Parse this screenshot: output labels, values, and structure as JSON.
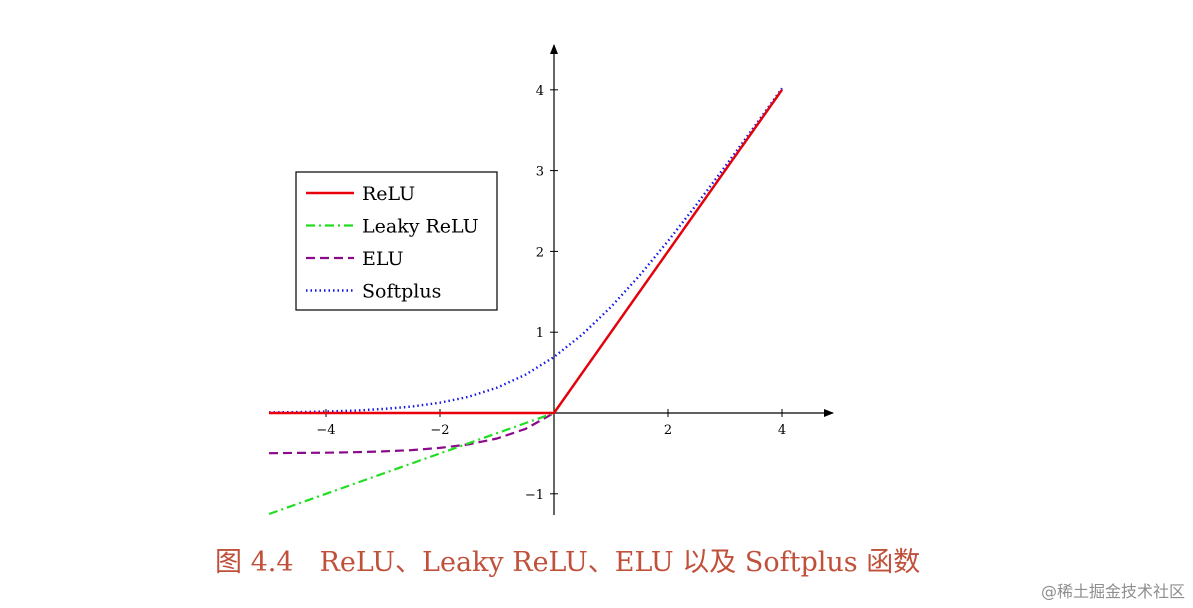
{
  "chart_data": {
    "type": "line",
    "title": "",
    "xlabel": "",
    "ylabel": "",
    "xlim": [
      -5,
      5
    ],
    "ylim": [
      -1.25,
      4.5
    ],
    "x_ticks": [
      -4,
      -2,
      2,
      4
    ],
    "x_tick_labels": [
      "−4",
      "−2",
      "2",
      "4"
    ],
    "y_ticks": [
      -1,
      1,
      2,
      3,
      4
    ],
    "y_tick_labels": [
      "−1",
      "1",
      "2",
      "3",
      "4"
    ],
    "grid": false,
    "legend_position": "upper-left",
    "x": [
      -5,
      -4.5,
      -4,
      -3.5,
      -3,
      -2.5,
      -2,
      -1.5,
      -1,
      -0.5,
      0,
      0.5,
      1,
      1.5,
      2,
      2.5,
      3,
      3.5,
      4
    ],
    "series": [
      {
        "name": "ReLU",
        "color": "#e8000b",
        "style": "solid",
        "values": [
          0,
          0,
          0,
          0,
          0,
          0,
          0,
          0,
          0,
          0,
          0,
          0.5,
          1,
          1.5,
          2,
          2.5,
          3,
          3.5,
          4
        ]
      },
      {
        "name": "Leaky ReLU",
        "color": "#22dd22",
        "style": "dashdot",
        "values": [
          -1.25,
          -1.125,
          -1.0,
          -0.875,
          -0.75,
          -0.625,
          -0.5,
          -0.375,
          -0.25,
          -0.125,
          0,
          0.5,
          1,
          1.5,
          2,
          2.5,
          3,
          3.5,
          4
        ]
      },
      {
        "name": "ELU",
        "color": "#8b0a8b",
        "style": "dashed",
        "values": [
          -0.497,
          -0.494,
          -0.491,
          -0.485,
          -0.475,
          -0.459,
          -0.432,
          -0.388,
          -0.316,
          -0.197,
          0,
          0.5,
          1,
          1.5,
          2,
          2.5,
          3,
          3.5,
          4
        ]
      },
      {
        "name": "Softplus",
        "color": "#1515e6",
        "style": "dotted",
        "values": [
          0.007,
          0.011,
          0.018,
          0.03,
          0.049,
          0.079,
          0.127,
          0.201,
          0.313,
          0.474,
          0.693,
          0.974,
          1.313,
          1.701,
          2.127,
          2.579,
          3.049,
          3.53,
          4.018
        ]
      }
    ]
  },
  "caption": {
    "number": "图 4.4",
    "text": "ReLU、Leaky ReLU、ELU 以及 Softplus 函数",
    "color": "#c0503a"
  },
  "watermark": {
    "text": "@稀土掘金技术社区"
  }
}
